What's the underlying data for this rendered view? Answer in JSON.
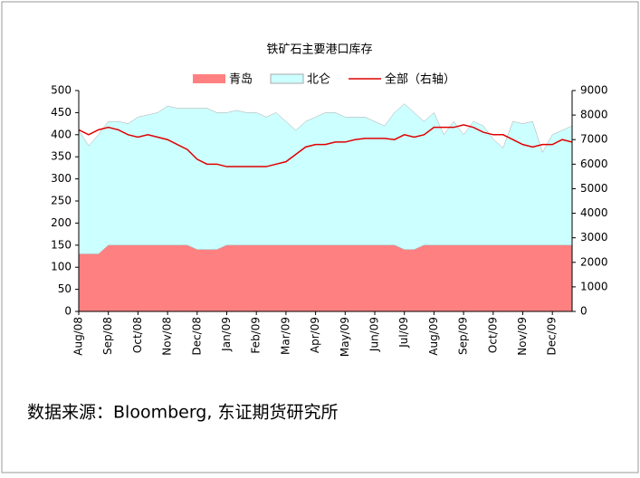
{
  "chart_data": {
    "type": "stacked-area-line",
    "title": "铁矿石主要港口库存",
    "source": "数据来源：Bloomberg, 东证期货研究所",
    "categories": [
      "Aug/08",
      null,
      null,
      "Sep/08",
      null,
      null,
      "Oct/08",
      null,
      null,
      "Nov/08",
      null,
      null,
      "Dec/08",
      null,
      null,
      "Jan/09",
      null,
      null,
      "Feb/09",
      null,
      null,
      "Mar/09",
      null,
      null,
      "Apr/09",
      null,
      null,
      "May/09",
      null,
      null,
      "Jun/09",
      null,
      null,
      "Jul/09",
      null,
      null,
      "Aug/09",
      null,
      null,
      "Sep/09",
      null,
      null,
      "Oct/09",
      null,
      null,
      "Nov/09",
      null,
      null,
      "Dec/09",
      null,
      null
    ],
    "series": [
      {
        "name": "青岛",
        "kind": "area",
        "color": "#ff8080",
        "values": [
          130,
          130,
          130,
          150,
          150,
          150,
          150,
          150,
          150,
          150,
          150,
          150,
          140,
          140,
          140,
          150,
          150,
          150,
          150,
          150,
          150,
          150,
          150,
          150,
          150,
          150,
          150,
          150,
          150,
          150,
          150,
          150,
          150,
          140,
          140,
          150,
          150,
          150,
          150,
          150,
          150,
          150,
          150,
          150,
          150,
          150,
          150,
          150,
          150,
          150,
          150
        ]
      },
      {
        "name": "北仑",
        "kind": "area",
        "color": "#ccffff",
        "values": [
          280,
          245,
          270,
          280,
          280,
          275,
          290,
          295,
          300,
          315,
          310,
          310,
          320,
          320,
          310,
          300,
          305,
          300,
          300,
          290,
          300,
          280,
          260,
          280,
          290,
          300,
          300,
          290,
          290,
          290,
          280,
          270,
          300,
          330,
          310,
          280,
          300,
          250,
          280,
          250,
          280,
          270,
          240,
          220,
          280,
          275,
          280,
          210,
          250,
          260,
          270
        ]
      },
      {
        "name": "全部（右轴）",
        "kind": "line",
        "axis": "y2",
        "color": "#e00000",
        "values": [
          7400,
          7200,
          7400,
          7500,
          7400,
          7200,
          7100,
          7200,
          7100,
          7000,
          6800,
          6600,
          6200,
          6000,
          6000,
          5900,
          5900,
          5900,
          5900,
          5900,
          6000,
          6100,
          6400,
          6700,
          6800,
          6800,
          6900,
          6900,
          7000,
          7050,
          7050,
          7050,
          7000,
          7200,
          7100,
          7200,
          7500,
          7500,
          7500,
          7600,
          7500,
          7300,
          7200,
          7200,
          7000,
          6800,
          6700,
          6800,
          6800,
          7000,
          6900
        ]
      }
    ],
    "ylim": [
      0,
      500
    ],
    "yticks": [
      0,
      50,
      100,
      150,
      200,
      250,
      300,
      350,
      400,
      450,
      500
    ],
    "y2lim": [
      0,
      9000
    ],
    "y2ticks": [
      0,
      1000,
      2000,
      3000,
      4000,
      5000,
      6000,
      7000,
      8000,
      9000
    ]
  }
}
